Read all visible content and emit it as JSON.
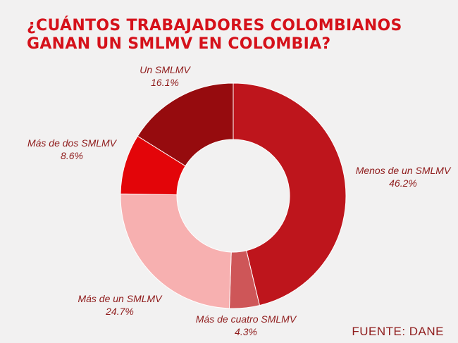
{
  "chart_data": {
    "type": "pie",
    "title_lines": [
      "¿CUÁNTOS TRABAJADORES COLOMBIANOS",
      "GANAN UN SMLMV EN COLOMBIA?"
    ],
    "slices": [
      {
        "label": "Menos de un SMLMV",
        "value": 46.2,
        "value_text": "46.2%",
        "color": "#be151c"
      },
      {
        "label": "Más de cuatro SMLMV",
        "value": 4.3,
        "value_text": "4.3%",
        "color": "#ce5658"
      },
      {
        "label": "Más de un SMLMV",
        "value": 24.7,
        "value_text": "24.7%",
        "color": "#f7b0b0"
      },
      {
        "label": "Más de dos SMLMV",
        "value": 8.6,
        "value_text": "8.6%",
        "color": "#e30509"
      },
      {
        "label": "Un SMLMV",
        "value": 16.1,
        "value_text": "16.1%",
        "color": "#960b0e"
      }
    ],
    "start": "top",
    "direction": "clockwise",
    "donut": true
  },
  "source": "FUENTE: DANE",
  "colors": {
    "title": "#d5111a",
    "label": "#8f1c1c",
    "background": "#f2f1f1"
  }
}
